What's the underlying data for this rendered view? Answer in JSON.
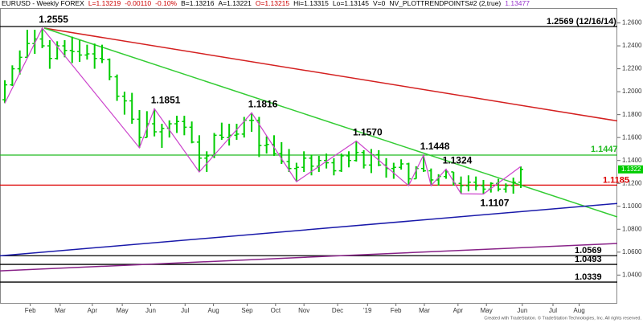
{
  "chart_data": {
    "type": "ohlc",
    "header": [
      {
        "text": "EURUSD - Weekly  FOREX",
        "color": "#000000"
      },
      {
        "text": "L=1.13219",
        "color": "#cc0000"
      },
      {
        "text": "-0.00110",
        "color": "#cc0000"
      },
      {
        "text": "-0.10%",
        "color": "#cc0000"
      },
      {
        "text": "B=1.13216",
        "color": "#000000"
      },
      {
        "text": "A=1.13221",
        "color": "#000000"
      },
      {
        "text": "O=1.13215",
        "color": "#cc0000"
      },
      {
        "text": "Hi=1.13315",
        "color": "#000000"
      },
      {
        "text": "Lo=1.13145",
        "color": "#000000"
      },
      {
        "text": "V=0",
        "color": "#000000"
      },
      {
        "text": "NV_PLOTTRENDPOINTS#2 (2,true)",
        "color": "#000000"
      },
      {
        "text": "1.13477",
        "color": "#9933cc"
      }
    ],
    "footer": "Created with TradeStation. © TradeStation Technologies, Inc. All rights reserved.",
    "color": "#00cc00",
    "xlim": [
      -0.65,
      81.9
    ],
    "ylim": [
      1.015,
      1.273
    ],
    "xticks": [
      {
        "value": 3.4,
        "label": "Feb"
      },
      {
        "value": 7.4,
        "label": "Mar"
      },
      {
        "value": 11.7,
        "label": "Apr"
      },
      {
        "value": 15.7,
        "label": "May"
      },
      {
        "value": 19.5,
        "label": "Jun"
      },
      {
        "value": 24.1,
        "label": "Jul"
      },
      {
        "value": 27.9,
        "label": "Aug"
      },
      {
        "value": 32.4,
        "label": "Sep"
      },
      {
        "value": 36.2,
        "label": "Oct"
      },
      {
        "value": 40,
        "label": "Nov"
      },
      {
        "value": 44.5,
        "label": "Dec"
      },
      {
        "value": 48.5,
        "label": "'19"
      },
      {
        "value": 52.3,
        "label": "Feb"
      },
      {
        "value": 56.1,
        "label": "Mar"
      },
      {
        "value": 60.6,
        "label": "Apr"
      },
      {
        "value": 64.4,
        "label": "May"
      },
      {
        "value": 69.2,
        "label": "Jun"
      },
      {
        "value": 73.3,
        "label": "Jul"
      },
      {
        "value": 76.8,
        "label": "Aug"
      }
    ],
    "yticks": [
      {
        "value": 1.04,
        "label": "1.0400"
      },
      {
        "value": 1.06,
        "label": "1.0600"
      },
      {
        "value": 1.08,
        "label": "1.0800"
      },
      {
        "value": 1.1,
        "label": "1.1000"
      },
      {
        "value": 1.12,
        "label": "1.1200"
      },
      {
        "value": 1.14,
        "label": "1.1400"
      },
      {
        "value": 1.16,
        "label": "1.1600"
      },
      {
        "value": 1.18,
        "label": "1.1800"
      },
      {
        "value": 1.2,
        "label": "1.2000"
      },
      {
        "value": 1.22,
        "label": "1.2200"
      },
      {
        "value": 1.24,
        "label": "1.2400"
      },
      {
        "value": 1.26,
        "label": "1.2600"
      }
    ],
    "high": [
      1.21,
      1.223,
      1.236,
      1.254,
      1.254,
      1.2555,
      1.245,
      1.244,
      1.245,
      1.248,
      1.245,
      1.241,
      1.242,
      1.241,
      1.229,
      1.215,
      1.2,
      1.199,
      1.184,
      1.183,
      1.1851,
      1.172,
      1.175,
      1.179,
      1.179,
      1.174,
      1.162,
      1.148,
      1.164,
      1.173,
      1.172,
      1.172,
      1.178,
      1.1816,
      1.178,
      1.161,
      1.162,
      1.156,
      1.15,
      1.138,
      1.148,
      1.145,
      1.144,
      1.146,
      1.142,
      1.146,
      1.148,
      1.157,
      1.149,
      1.15,
      1.149,
      1.142,
      1.138,
      1.141,
      1.138,
      1.135,
      1.1448,
      1.133,
      1.128,
      1.1324,
      1.13,
      1.126,
      1.127,
      1.126,
      1.123,
      1.121,
      1.124,
      1.12,
      1.125,
      1.1348
    ],
    "low": [
      1.19,
      1.205,
      1.215,
      1.23,
      1.233,
      1.238,
      1.22,
      1.228,
      1.23,
      1.225,
      1.226,
      1.228,
      1.22,
      1.225,
      1.21,
      1.192,
      1.18,
      1.172,
      1.151,
      1.16,
      1.161,
      1.151,
      1.16,
      1.164,
      1.162,
      1.155,
      1.13,
      1.13,
      1.142,
      1.158,
      1.153,
      1.158,
      1.16,
      1.165,
      1.143,
      1.146,
      1.144,
      1.137,
      1.13,
      1.1215,
      1.13,
      1.127,
      1.13,
      1.133,
      1.127,
      1.13,
      1.134,
      1.139,
      1.133,
      1.129,
      1.135,
      1.125,
      1.124,
      1.132,
      1.118,
      1.124,
      1.13,
      1.118,
      1.118,
      1.124,
      1.118,
      1.111,
      1.113,
      1.114,
      1.1107,
      1.112,
      1.113,
      1.112,
      1.111,
      1.116
    ],
    "open": [
      1.193,
      1.206,
      1.22,
      1.23,
      1.242,
      1.246,
      1.24,
      1.229,
      1.24,
      1.236,
      1.235,
      1.232,
      1.233,
      1.229,
      1.228,
      1.213,
      1.196,
      1.192,
      1.176,
      1.16,
      1.172,
      1.165,
      1.168,
      1.172,
      1.174,
      1.169,
      1.156,
      1.142,
      1.144,
      1.162,
      1.16,
      1.162,
      1.163,
      1.175,
      1.175,
      1.153,
      1.154,
      1.146,
      1.139,
      1.133,
      1.134,
      1.142,
      1.135,
      1.14,
      1.138,
      1.131,
      1.144,
      1.14,
      1.147,
      1.136,
      1.145,
      1.136,
      1.133,
      1.134,
      1.137,
      1.124,
      1.133,
      1.131,
      1.123,
      1.126,
      1.13,
      1.12,
      1.118,
      1.121,
      1.118,
      1.115,
      1.12,
      1.115,
      1.118,
      1.121
    ],
    "close": [
      1.206,
      1.22,
      1.23,
      1.242,
      1.246,
      1.24,
      1.229,
      1.24,
      1.236,
      1.235,
      1.232,
      1.233,
      1.229,
      1.228,
      1.213,
      1.196,
      1.192,
      1.176,
      1.16,
      1.172,
      1.165,
      1.168,
      1.172,
      1.174,
      1.169,
      1.156,
      1.142,
      1.144,
      1.162,
      1.16,
      1.162,
      1.163,
      1.175,
      1.175,
      1.153,
      1.154,
      1.146,
      1.139,
      1.133,
      1.134,
      1.142,
      1.135,
      1.14,
      1.138,
      1.131,
      1.144,
      1.14,
      1.147,
      1.136,
      1.145,
      1.136,
      1.133,
      1.134,
      1.137,
      1.124,
      1.133,
      1.131,
      1.123,
      1.126,
      1.13,
      1.12,
      1.118,
      1.121,
      1.118,
      1.115,
      1.12,
      1.115,
      1.118,
      1.121,
      1.1322
    ],
    "swing": {
      "color": "#cc44cc",
      "x": [
        0,
        5,
        18,
        20,
        26,
        33,
        39,
        47,
        54,
        56,
        57,
        59,
        61,
        64,
        69
      ],
      "values": [
        1.19,
        1.2555,
        1.151,
        1.1851,
        1.13,
        1.1816,
        1.1215,
        1.157,
        1.118,
        1.1448,
        1.118,
        1.1324,
        1.111,
        1.1107,
        1.1348
      ]
    },
    "trendlines": [
      {
        "color": "#d42020",
        "x": [
          5.27,
          81.9
        ],
        "values": [
          1.2555,
          1.1745
        ]
      },
      {
        "color": "#33cc33",
        "x": [
          5.27,
          81.9
        ],
        "values": [
          1.2555,
          1.0907
        ]
      },
      {
        "color": "#1a1aaa",
        "x": [
          -0.65,
          81.9
        ],
        "values": [
          1.0568,
          1.1025
        ]
      },
      {
        "color": "#882288",
        "x": [
          -0.65,
          81.9
        ],
        "values": [
          1.0437,
          1.0676
        ]
      }
    ],
    "levels": [
      {
        "value": 1.2569,
        "label": "1.2569 (12/16/14)",
        "color": "#000000"
      },
      {
        "value": 1.1447,
        "label": "1.1447",
        "color": "#22bb22"
      },
      {
        "value": 1.1185,
        "label": "1.1185",
        "color": "#dd0000"
      },
      {
        "value": 1.0569,
        "label": "1.0569",
        "color": "#000000"
      },
      {
        "value": 1.0493,
        "label": "1.0493",
        "color": "#000000"
      },
      {
        "value": 1.0339,
        "label": "1.0339",
        "color": "#000000"
      }
    ],
    "annotations": [
      {
        "x": 5,
        "value": 1.2555,
        "label": "1.2555",
        "pos": "above"
      },
      {
        "x": 20,
        "value": 1.1851,
        "label": "1.1851",
        "pos": "above"
      },
      {
        "x": 33,
        "value": 1.1816,
        "label": "1.1816",
        "pos": "above"
      },
      {
        "x": 47,
        "value": 1.157,
        "label": "1.1570",
        "pos": "above"
      },
      {
        "x": 56,
        "value": 1.1448,
        "label": "1.1448",
        "pos": "above"
      },
      {
        "x": 59,
        "value": 1.1324,
        "label": "1.1324",
        "pos": "above"
      },
      {
        "x": 64,
        "value": 1.1107,
        "label": "1.1107",
        "pos": "below"
      }
    ],
    "last_price": {
      "value": 1.1322,
      "label": "1.1322"
    }
  }
}
